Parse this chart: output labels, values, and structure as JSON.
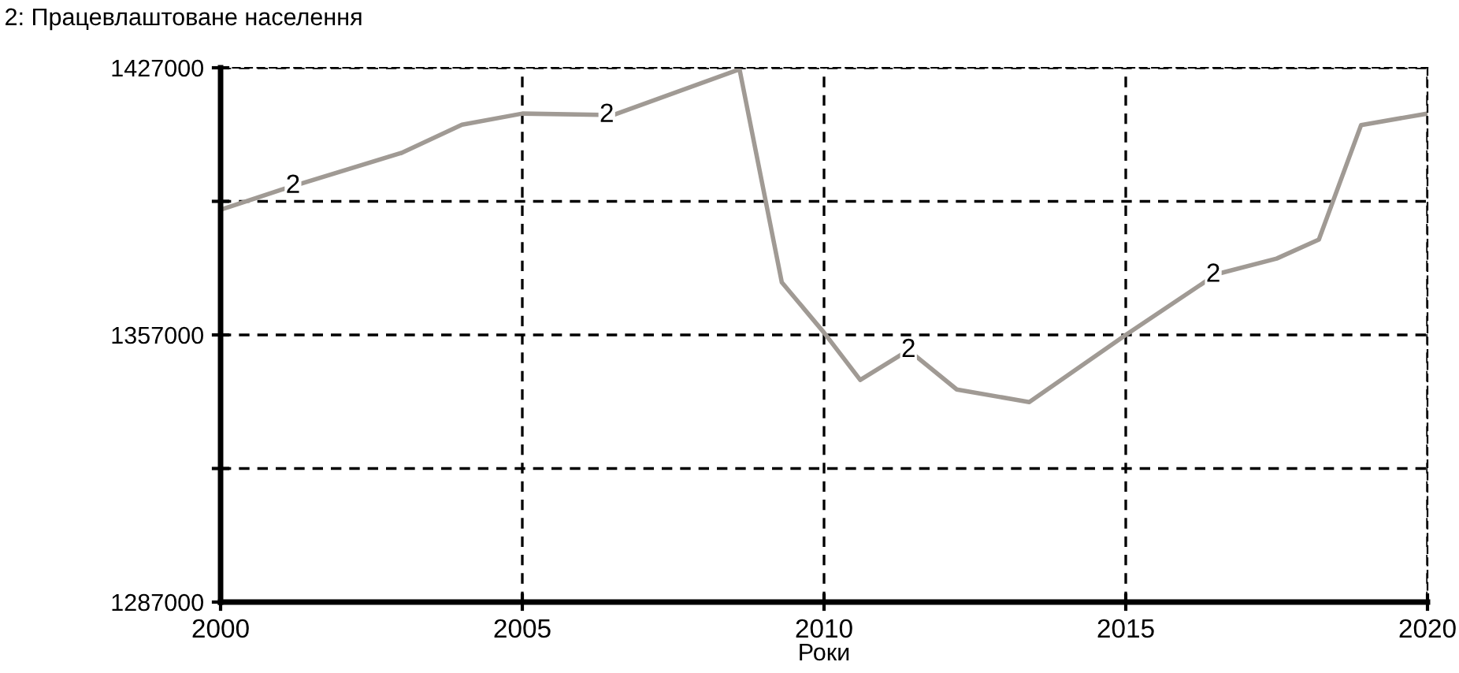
{
  "chart_data": {
    "type": "line",
    "title": "2: Працевлаштоване населення",
    "xlabel": "Роки",
    "x": [
      2000,
      2001,
      2003,
      2004,
      2005,
      2006.5,
      2008.6,
      2009.3,
      2010,
      2010.6,
      2011.4,
      2012.2,
      2013.4,
      2015,
      2016.5,
      2017.5,
      2018.2,
      2018.9,
      2020
    ],
    "series": [
      {
        "color": "#a09a94",
        "values": [
          1389800,
          1395000,
          1404700,
          1412100,
          1415000,
          1414600,
          1426600,
          1370800,
          1357600,
          1345200,
          1353000,
          1342700,
          1339400,
          1357000,
          1372900,
          1377000,
          1382000,
          1412000,
          1415000
        ]
      }
    ],
    "annotations": [
      {
        "text": "2",
        "x": 2001.2,
        "y": 1396000
      },
      {
        "text": "2",
        "x": 2006.4,
        "y": 1414600
      },
      {
        "text": "2",
        "x": 2011.4,
        "y": 1353000
      },
      {
        "text": "2",
        "x": 2016.45,
        "y": 1372700
      }
    ],
    "xlim": [
      2000,
      2020
    ],
    "xticks": [
      2000,
      2005,
      2010,
      2015,
      2020
    ],
    "ylim": [
      1287000,
      1427000
    ],
    "yticks": [
      1287000,
      {
        "value": 1322000,
        "label": null
      },
      1357000,
      {
        "value": 1392000,
        "label": null
      },
      1427000
    ],
    "grid": true,
    "legend": false,
    "marker": "none",
    "line_style": "solid"
  }
}
